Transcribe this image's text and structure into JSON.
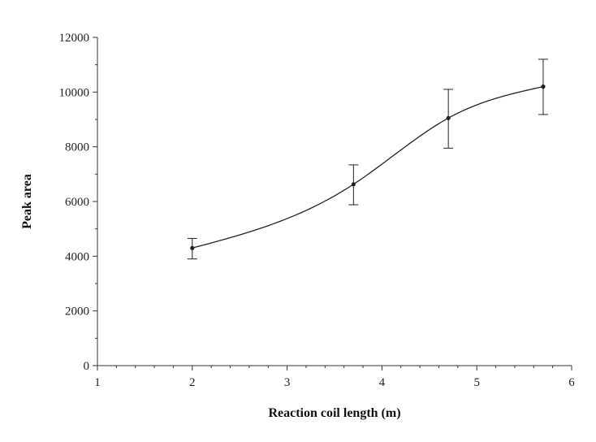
{
  "chart_data": {
    "type": "scatter",
    "xlabel": "Reaction coil length (m)",
    "ylabel": "Peak area",
    "xlim": [
      1,
      6
    ],
    "ylim": [
      0,
      12000
    ],
    "x_ticks": [
      1,
      2,
      3,
      4,
      5,
      6
    ],
    "x_tick_labels": [
      "1",
      "2",
      "3",
      "4",
      "5",
      "6"
    ],
    "y_ticks": [
      0,
      2000,
      4000,
      6000,
      8000,
      10000,
      12000
    ],
    "y_tick_labels": [
      "0",
      "2000",
      "4000",
      "6000",
      "8000",
      "10000",
      "12000"
    ],
    "grid": false,
    "fit_line": "smooth curve",
    "series": [
      {
        "x": [
          2,
          3.7,
          4.7,
          5.7
        ],
        "y": [
          4300,
          6630,
          9050,
          10200
        ],
        "error_low": [
          3900,
          5880,
          7950,
          9180
        ],
        "error_high": [
          4650,
          7340,
          10100,
          11200
        ]
      }
    ],
    "colors": {
      "line": "#222222",
      "marker": "#222222",
      "axis": "#333333"
    }
  }
}
